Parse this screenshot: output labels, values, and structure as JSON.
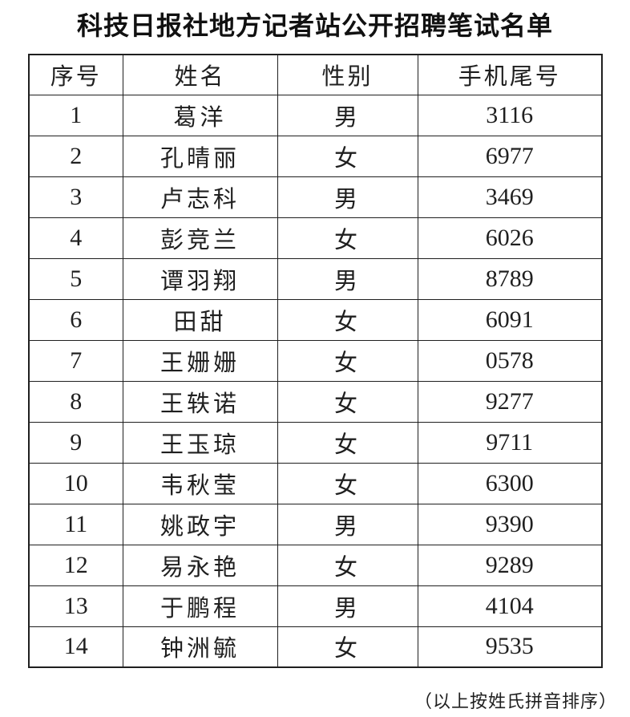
{
  "title": "科技日报社地方记者站公开招聘笔试名单",
  "table": {
    "headers": [
      "序号",
      "姓名",
      "性别",
      "手机尾号"
    ],
    "rows": [
      {
        "no": "1",
        "name": "葛洋",
        "gender": "男",
        "phone_tail": "3116"
      },
      {
        "no": "2",
        "name": "孔晴丽",
        "gender": "女",
        "phone_tail": "6977"
      },
      {
        "no": "3",
        "name": "卢志科",
        "gender": "男",
        "phone_tail": "3469"
      },
      {
        "no": "4",
        "name": "彭竞兰",
        "gender": "女",
        "phone_tail": "6026"
      },
      {
        "no": "5",
        "name": "谭羽翔",
        "gender": "男",
        "phone_tail": "8789"
      },
      {
        "no": "6",
        "name": "田甜",
        "gender": "女",
        "phone_tail": "6091"
      },
      {
        "no": "7",
        "name": "王姗姗",
        "gender": "女",
        "phone_tail": "0578"
      },
      {
        "no": "8",
        "name": "王轶诺",
        "gender": "女",
        "phone_tail": "9277"
      },
      {
        "no": "9",
        "name": "王玉琼",
        "gender": "女",
        "phone_tail": "9711"
      },
      {
        "no": "10",
        "name": "韦秋莹",
        "gender": "女",
        "phone_tail": "6300"
      },
      {
        "no": "11",
        "name": "姚政宇",
        "gender": "男",
        "phone_tail": "9390"
      },
      {
        "no": "12",
        "name": "易永艳",
        "gender": "女",
        "phone_tail": "9289"
      },
      {
        "no": "13",
        "name": "于鹏程",
        "gender": "男",
        "phone_tail": "4104"
      },
      {
        "no": "14",
        "name": "钟洲毓",
        "gender": "女",
        "phone_tail": "9535"
      }
    ]
  },
  "footer_note": "（以上按姓氏拼音排序）",
  "colors": {
    "background": "#ffffff",
    "text": "#1f1f1f",
    "border": "#1f1f1f"
  }
}
